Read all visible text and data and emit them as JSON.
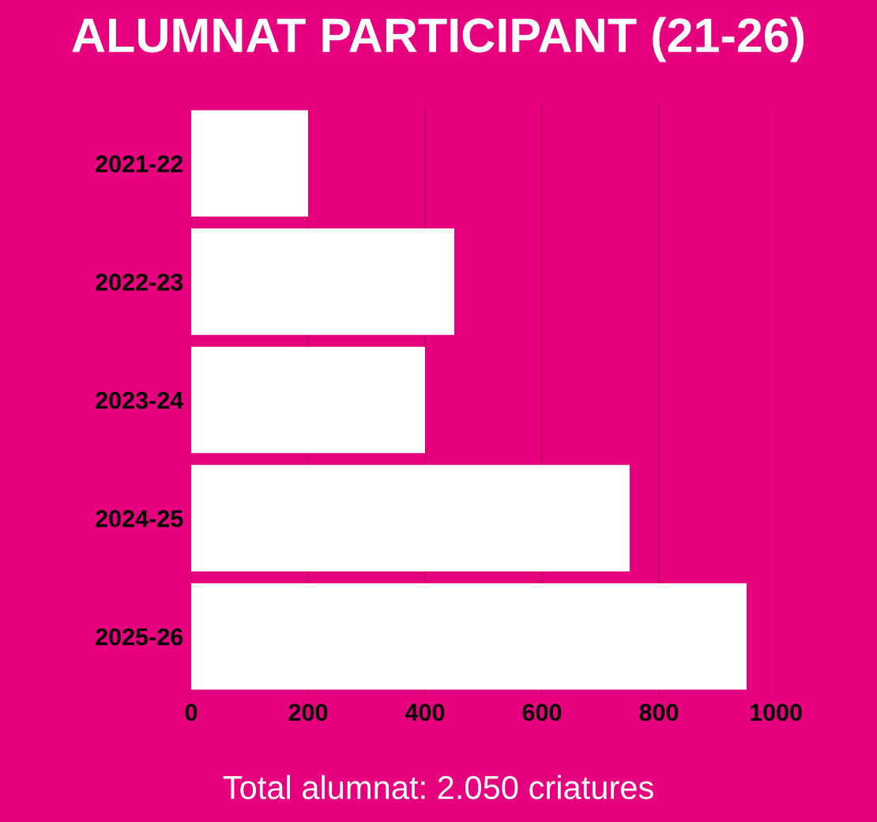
{
  "chart_data": {
    "type": "bar",
    "orientation": "horizontal",
    "title": "ALUMNAT PARTICIPANT (21-26)",
    "categories": [
      "2021-22",
      "2022-23",
      "2023-24",
      "2024-25",
      "2025-26"
    ],
    "values": [
      200,
      450,
      400,
      750,
      950
    ],
    "color": "#ffffff",
    "xlim": [
      0,
      1000
    ],
    "xticks": [
      0,
      200,
      400,
      600,
      800,
      1000
    ],
    "grid": "x",
    "annotations": [
      "Total alumnat: 2.050 criatures"
    ]
  }
}
